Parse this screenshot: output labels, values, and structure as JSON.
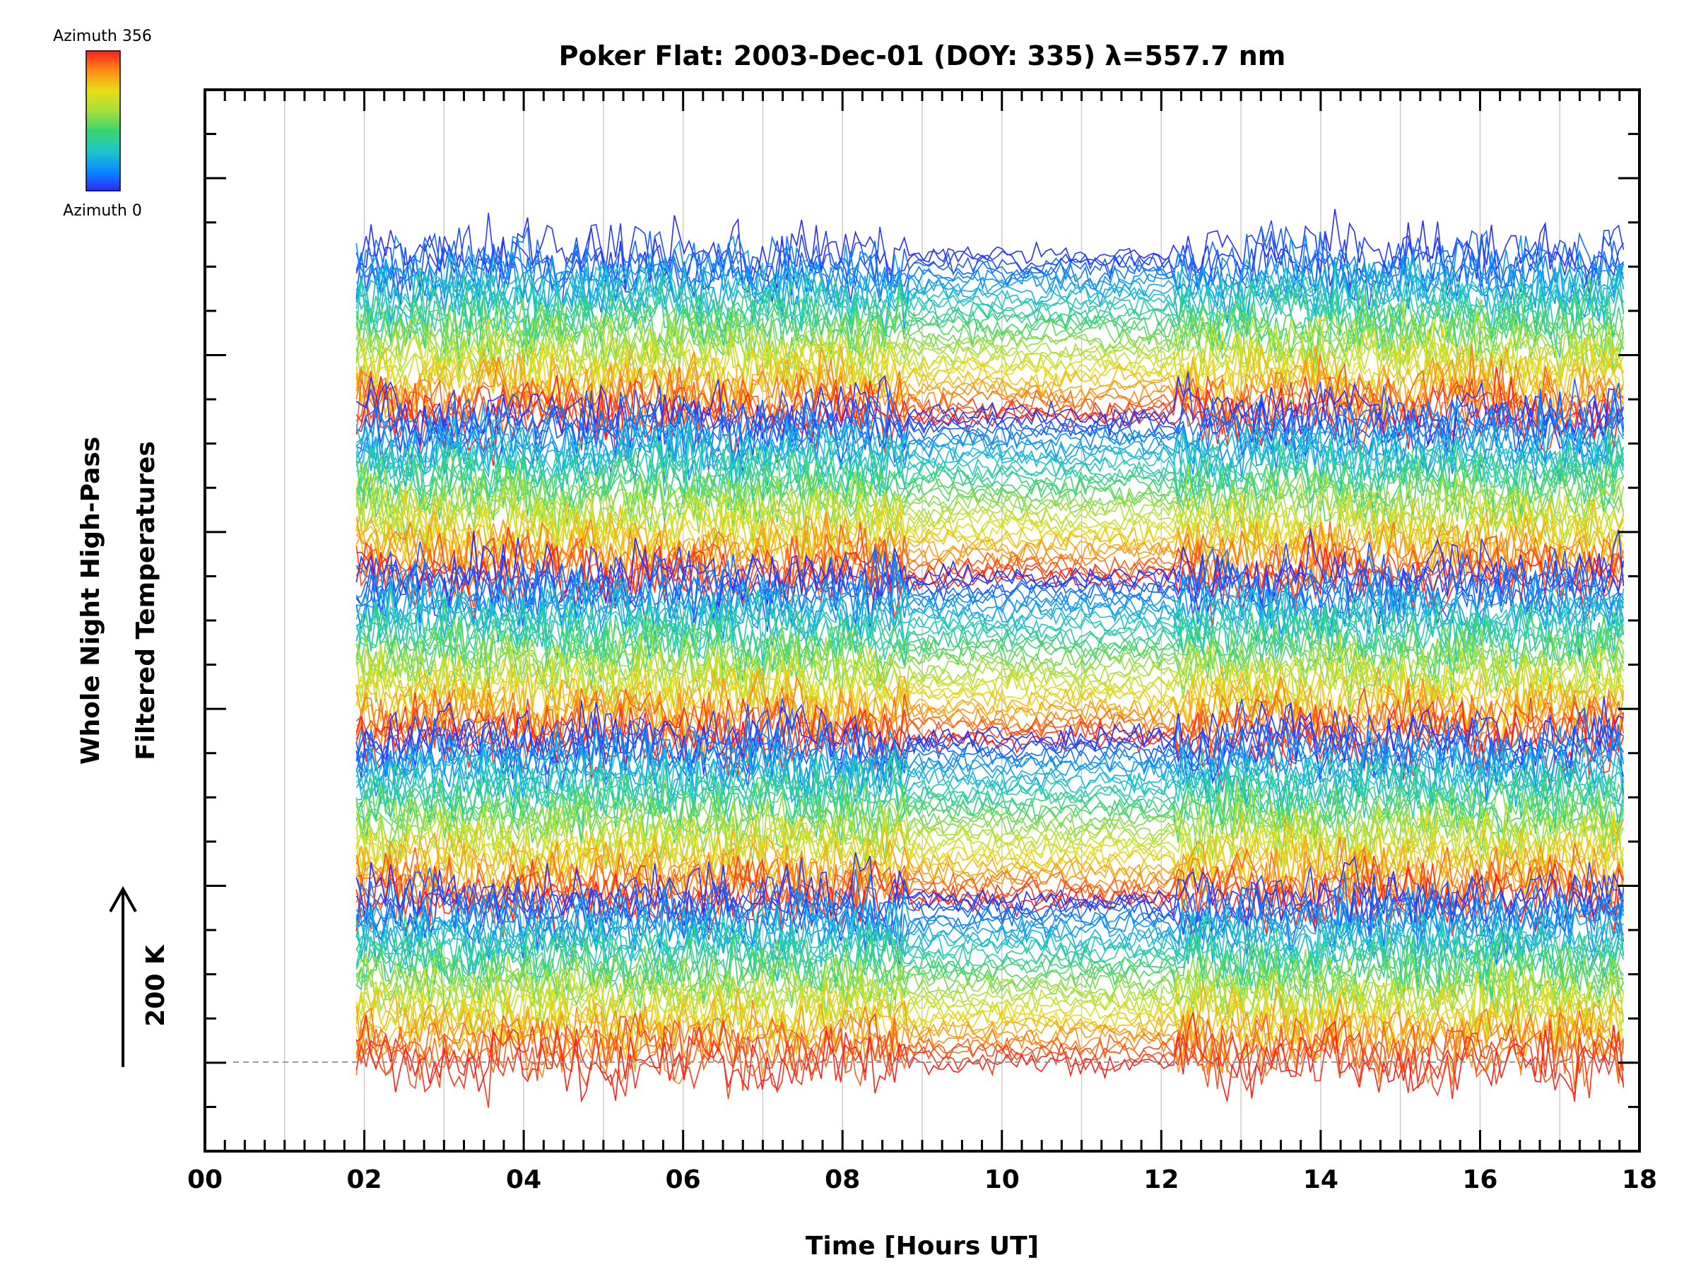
{
  "colors": {
    "axes": "#000000",
    "grid": "#cccccc",
    "reference_line": "#999999",
    "colormap": [
      "#2a2aff",
      "#0a8cff",
      "#1ec8c8",
      "#3cd46e",
      "#a6e03a",
      "#e8dc18",
      "#ff8c14",
      "#ff1e1e"
    ]
  },
  "colorbar": {
    "top_label": "Azimuth 356",
    "bottom_label": "Azimuth 0",
    "min": 0,
    "max": 356
  },
  "scale_indicator": {
    "label": "200 K",
    "icon": "up-arrow-icon"
  },
  "chart_data": {
    "type": "line",
    "title": "Poker Flat: 2003-Dec-01 (DOY: 335) λ=557.7 nm",
    "xlabel": "Time [Hours UT]",
    "ylabel": [
      "Whole Night High-Pass",
      "Filtered Temperatures"
    ],
    "xlim": [
      0,
      18
    ],
    "x_ticks": [
      {
        "value": 0,
        "label": "00"
      },
      {
        "value": 2,
        "label": "02"
      },
      {
        "value": 4,
        "label": "04"
      },
      {
        "value": 6,
        "label": "06"
      },
      {
        "value": 8,
        "label": "08"
      },
      {
        "value": 10,
        "label": "10"
      },
      {
        "value": 12,
        "label": "12"
      },
      {
        "value": 14,
        "label": "14"
      },
      {
        "value": 16,
        "label": "16"
      },
      {
        "value": 18,
        "label": "18"
      }
    ],
    "y_tick_labels": "none",
    "vertical_grid_hours": [
      1,
      2,
      3,
      4,
      5,
      6,
      7,
      8,
      9,
      10,
      11,
      12,
      13,
      14,
      15,
      16,
      17
    ],
    "data_start_hour": 1.9,
    "data_end_hour": 17.8,
    "grid": true,
    "series_color_by": "azimuth",
    "series_groups": [
      {
        "azimuth_range": [
          0,
          356
        ],
        "offset_level": 0
      },
      {
        "azimuth_range": [
          0,
          356
        ],
        "offset_level": 1
      },
      {
        "azimuth_range": [
          0,
          356
        ],
        "offset_level": 2
      },
      {
        "azimuth_range": [
          0,
          356
        ],
        "offset_level": 3
      },
      {
        "azimuth_range": [
          0,
          356
        ],
        "offset_level": 4
      }
    ]
  }
}
